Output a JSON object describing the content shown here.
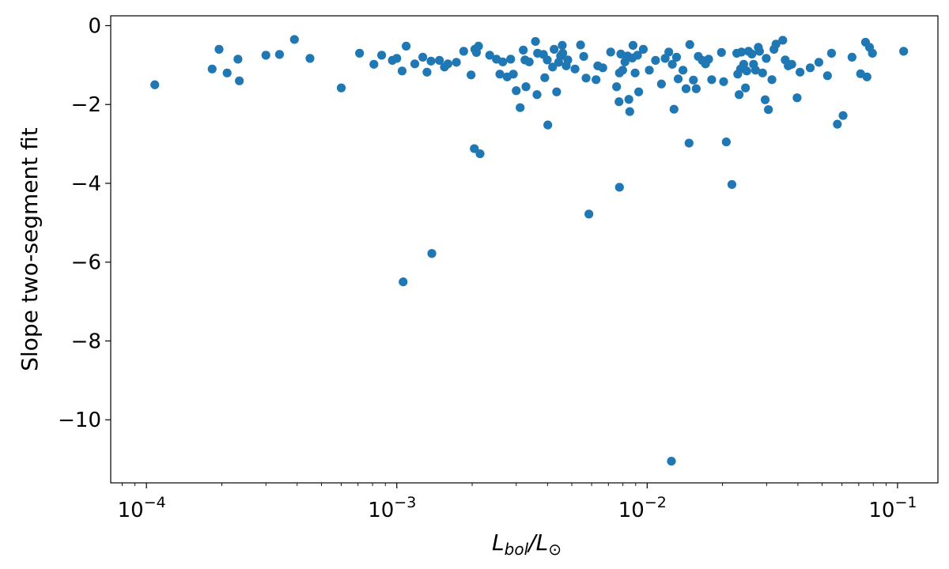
{
  "chart_data": {
    "type": "scatter",
    "title": "",
    "xlabel": {
      "main": "L",
      "sub": "bol",
      "sep": "/L",
      "sym": "⊙"
    },
    "ylabel": "Slope two-segment fit",
    "xscale": "log",
    "xlim": [
      7.2e-05,
      0.145
    ],
    "ylim": [
      -11.6,
      0.25
    ],
    "xticks": [
      {
        "value": 0.0001,
        "base": "10",
        "exp": "−4"
      },
      {
        "value": 0.001,
        "base": "10",
        "exp": "−3"
      },
      {
        "value": 0.01,
        "base": "10",
        "exp": "−2"
      },
      {
        "value": 0.1,
        "base": "10",
        "exp": "−1"
      }
    ],
    "yticks": [
      {
        "value": 0,
        "label": "0"
      },
      {
        "value": -2,
        "label": "−2"
      },
      {
        "value": -4,
        "label": "−4"
      },
      {
        "value": -6,
        "label": "−6"
      },
      {
        "value": -8,
        "label": "−8"
      },
      {
        "value": -10,
        "label": "−10"
      }
    ],
    "grid": false,
    "legend": "none",
    "color": "#1f77b4",
    "points": [
      [
        0.000108,
        -1.5
      ],
      [
        0.000183,
        -1.1
      ],
      [
        0.000195,
        -0.6
      ],
      [
        0.00021,
        -1.2
      ],
      [
        0.000232,
        -0.85
      ],
      [
        0.000235,
        -1.4
      ],
      [
        0.0003,
        -0.75
      ],
      [
        0.00034,
        -0.73
      ],
      [
        0.00039,
        -0.35
      ],
      [
        0.00045,
        -0.83
      ],
      [
        0.0006,
        -1.58
      ],
      [
        0.00071,
        -0.7
      ],
      [
        0.00081,
        -0.98
      ],
      [
        0.00087,
        -0.75
      ],
      [
        0.00096,
        -0.88
      ],
      [
        0.001,
        -0.83
      ],
      [
        0.00105,
        -1.15
      ],
      [
        0.00109,
        -0.52
      ],
      [
        0.00118,
        -0.97
      ],
      [
        0.00127,
        -0.8
      ],
      [
        0.00132,
        -1.18
      ],
      [
        0.00137,
        -0.9
      ],
      [
        0.00148,
        -0.88
      ],
      [
        0.00155,
        -1.05
      ],
      [
        0.0016,
        -0.97
      ],
      [
        0.00173,
        -0.93
      ],
      [
        0.00185,
        -0.65
      ],
      [
        0.00198,
        -1.25
      ],
      [
        0.00205,
        -0.6
      ],
      [
        0.00208,
        -0.68
      ],
      [
        0.00212,
        -0.52
      ],
      [
        0.00235,
        -0.75
      ],
      [
        0.0025,
        -0.85
      ],
      [
        0.00258,
        -1.23
      ],
      [
        0.00265,
        -0.92
      ],
      [
        0.00276,
        -1.3
      ],
      [
        0.00285,
        -0.85
      ],
      [
        0.00292,
        -1.23
      ],
      [
        0.003,
        -1.65
      ],
      [
        0.00311,
        -2.08
      ],
      [
        0.0032,
        -0.62
      ],
      [
        0.00325,
        -0.87
      ],
      [
        0.00328,
        -1.55
      ],
      [
        0.00338,
        -0.92
      ],
      [
        0.00358,
        -0.4
      ],
      [
        0.00363,
        -1.75
      ],
      [
        0.00365,
        -0.7
      ],
      [
        0.00385,
        -0.73
      ],
      [
        0.0039,
        -1.32
      ],
      [
        0.00399,
        -0.87
      ],
      [
        0.00419,
        -1.05
      ],
      [
        0.00425,
        -0.6
      ],
      [
        0.00435,
        -1.68
      ],
      [
        0.00443,
        -0.93
      ],
      [
        0.00451,
        -0.77
      ],
      [
        0.00458,
        -0.5
      ],
      [
        0.0046,
        -0.7
      ],
      [
        0.00475,
        -1.02
      ],
      [
        0.00482,
        -0.87
      ],
      [
        0.00515,
        -1.1
      ],
      [
        0.00542,
        -0.49
      ],
      [
        0.00558,
        -0.78
      ],
      [
        0.0057,
        -1.33
      ],
      [
        0.00625,
        -1.37
      ],
      [
        0.00635,
        -1.02
      ],
      [
        0.00665,
        -1.07
      ],
      [
        0.00715,
        -0.67
      ],
      [
        0.00755,
        -1.55
      ],
      [
        0.00772,
        -1.93
      ],
      [
        0.00775,
        -1.2
      ],
      [
        0.00785,
        -0.72
      ],
      [
        0.00798,
        -1.13
      ],
      [
        0.00815,
        -0.92
      ],
      [
        0.00835,
        -0.77
      ],
      [
        0.00845,
        -1.87
      ],
      [
        0.00852,
        -2.18
      ],
      [
        0.00872,
        -0.82
      ],
      [
        0.00878,
        -0.5
      ],
      [
        0.00895,
        -1.2
      ],
      [
        0.00915,
        -0.75
      ],
      [
        0.00925,
        -1.68
      ],
      [
        0.00965,
        -0.6
      ],
      [
        0.0102,
        -1.13
      ],
      [
        0.0108,
        -0.88
      ],
      [
        0.0114,
        -1.48
      ],
      [
        0.0118,
        -0.83
      ],
      [
        0.0122,
        -0.67
      ],
      [
        0.0126,
        -0.98
      ],
      [
        0.0128,
        -2.12
      ],
      [
        0.0131,
        -0.8
      ],
      [
        0.0133,
        -1.35
      ],
      [
        0.0139,
        -1.13
      ],
      [
        0.0143,
        -1.6
      ],
      [
        0.0148,
        -0.48
      ],
      [
        0.0153,
        -1.38
      ],
      [
        0.0157,
        -1.6
      ],
      [
        0.016,
        -0.78
      ],
      [
        0.0166,
        -0.88
      ],
      [
        0.0171,
        -0.97
      ],
      [
        0.0176,
        -0.85
      ],
      [
        0.0181,
        -1.37
      ],
      [
        0.0198,
        -0.68
      ],
      [
        0.0202,
        -1.42
      ],
      [
        0.0228,
        -0.7
      ],
      [
        0.023,
        -1.23
      ],
      [
        0.0233,
        -1.75
      ],
      [
        0.0236,
        -1.1
      ],
      [
        0.0238,
        -0.67
      ],
      [
        0.0243,
        -0.98
      ],
      [
        0.0247,
        -1.58
      ],
      [
        0.025,
        -1.15
      ],
      [
        0.0254,
        -0.65
      ],
      [
        0.0262,
        -0.72
      ],
      [
        0.0266,
        -0.98
      ],
      [
        0.0271,
        -1.13
      ],
      [
        0.0278,
        -0.55
      ],
      [
        0.0281,
        -0.65
      ],
      [
        0.0289,
        -1.2
      ],
      [
        0.0296,
        -1.88
      ],
      [
        0.0299,
        -0.83
      ],
      [
        0.0305,
        -2.13
      ],
      [
        0.0315,
        -1.37
      ],
      [
        0.0321,
        -0.6
      ],
      [
        0.0327,
        -0.47
      ],
      [
        0.0348,
        -0.37
      ],
      [
        0.0356,
        -0.87
      ],
      [
        0.0366,
        -1.02
      ],
      [
        0.0378,
        -0.98
      ],
      [
        0.0397,
        -1.83
      ],
      [
        0.0408,
        -1.18
      ],
      [
        0.0448,
        -1.07
      ],
      [
        0.0485,
        -0.93
      ],
      [
        0.0525,
        -1.27
      ],
      [
        0.0545,
        -0.7
      ],
      [
        0.0575,
        -2.5
      ],
      [
        0.0606,
        -2.28
      ],
      [
        0.0658,
        -0.8
      ],
      [
        0.0712,
        -1.22
      ],
      [
        0.0745,
        -0.42
      ],
      [
        0.0755,
        -1.3
      ],
      [
        0.0773,
        -0.55
      ],
      [
        0.0794,
        -0.7
      ],
      [
        0.1058,
        -0.65
      ],
      [
        0.00204,
        -3.12
      ],
      [
        0.00215,
        -3.25
      ],
      [
        0.00401,
        -2.52
      ],
      [
        0.00585,
        -4.78
      ],
      [
        0.00775,
        -4.1
      ],
      [
        0.0147,
        -2.98
      ],
      [
        0.0207,
        -2.95
      ],
      [
        0.0218,
        -4.03
      ],
      [
        0.00106,
        -6.5
      ],
      [
        0.00138,
        -5.78
      ],
      [
        0.0125,
        -11.05
      ]
    ]
  }
}
